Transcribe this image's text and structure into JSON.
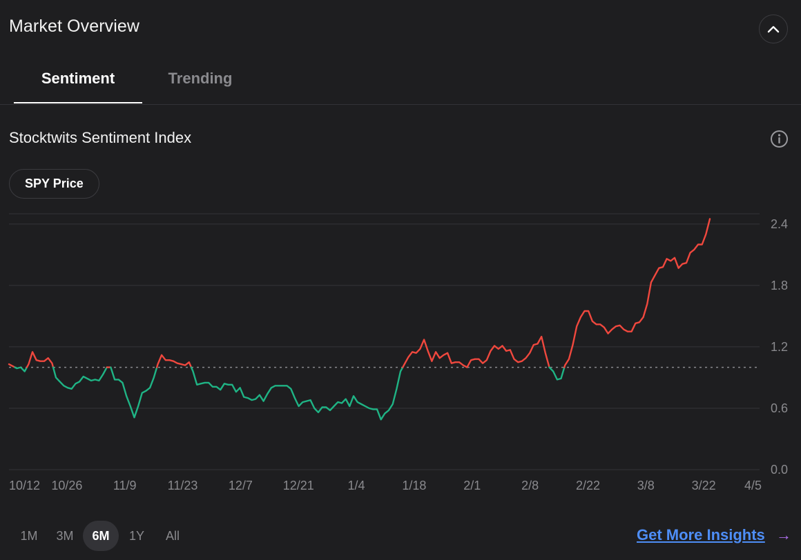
{
  "header": {
    "title": "Market Overview"
  },
  "tabs": [
    {
      "label": "Sentiment",
      "active": true
    },
    {
      "label": "Trending",
      "active": false
    }
  ],
  "section": {
    "title": "Stocktwits Sentiment Index",
    "info_icon": "info-icon"
  },
  "filter_pill": {
    "label": "SPY Price"
  },
  "chart_data": {
    "type": "line",
    "title": "",
    "xlabel": "",
    "ylabel": "",
    "ylim": [
      0,
      2.5
    ],
    "y_ticks": [
      "0.0",
      "0.6",
      "1.2",
      "1.8",
      "2.4"
    ],
    "x_ticks": [
      "10/12",
      "10/26",
      "11/9",
      "11/23",
      "12/7",
      "12/21",
      "1/4",
      "1/18",
      "2/1",
      "2/8",
      "2/22",
      "3/8",
      "3/22",
      "4/5"
    ],
    "baseline": 1.0,
    "colors": {
      "above": "#f0483e",
      "below": "#1fb485",
      "baseline": "#8a8a8e",
      "grid": "#343438"
    },
    "series": [
      {
        "name": "",
        "values": [
          1.03,
          1.01,
          0.99,
          1.0,
          0.96,
          1.03,
          1.15,
          1.07,
          1.06,
          1.06,
          1.09,
          1.04,
          0.9,
          0.86,
          0.82,
          0.8,
          0.79,
          0.84,
          0.86,
          0.91,
          0.89,
          0.87,
          0.88,
          0.87,
          0.93,
          1.0,
          1.0,
          0.88,
          0.88,
          0.85,
          0.72,
          0.62,
          0.51,
          0.62,
          0.75,
          0.77,
          0.8,
          0.9,
          1.03,
          1.12,
          1.07,
          1.07,
          1.06,
          1.04,
          1.03,
          1.02,
          1.05,
          0.96,
          0.83,
          0.84,
          0.85,
          0.85,
          0.81,
          0.81,
          0.78,
          0.84,
          0.83,
          0.83,
          0.76,
          0.8,
          0.71,
          0.7,
          0.68,
          0.69,
          0.73,
          0.67,
          0.74,
          0.8,
          0.82,
          0.82,
          0.82,
          0.82,
          0.79,
          0.7,
          0.62,
          0.66,
          0.67,
          0.68,
          0.6,
          0.56,
          0.61,
          0.61,
          0.58,
          0.62,
          0.66,
          0.65,
          0.69,
          0.62,
          0.72,
          0.66,
          0.64,
          0.62,
          0.6,
          0.59,
          0.59,
          0.49,
          0.55,
          0.58,
          0.64,
          0.79,
          0.96,
          1.03,
          1.1,
          1.15,
          1.14,
          1.18,
          1.27,
          1.16,
          1.06,
          1.15,
          1.09,
          1.12,
          1.14,
          1.04,
          1.05,
          1.05,
          1.02,
          1.0,
          1.07,
          1.08,
          1.08,
          1.04,
          1.07,
          1.16,
          1.21,
          1.18,
          1.21,
          1.16,
          1.17,
          1.08,
          1.05,
          1.06,
          1.09,
          1.14,
          1.22,
          1.23,
          1.3,
          1.14,
          1.0,
          0.96,
          0.88,
          0.89,
          1.02,
          1.08,
          1.22,
          1.4,
          1.49,
          1.55,
          1.55,
          1.45,
          1.42,
          1.42,
          1.39,
          1.33,
          1.37,
          1.4,
          1.41,
          1.37,
          1.35,
          1.35,
          1.43,
          1.44,
          1.49,
          1.62,
          1.83,
          1.9,
          1.97,
          1.98,
          2.06,
          2.04,
          2.07,
          1.97,
          2.01,
          2.02,
          2.12,
          2.15,
          2.2,
          2.2,
          2.3,
          2.45
        ]
      }
    ]
  },
  "range_buttons": [
    {
      "label": "1M",
      "active": false
    },
    {
      "label": "3M",
      "active": false
    },
    {
      "label": "6M",
      "active": true
    },
    {
      "label": "1Y",
      "active": false
    },
    {
      "label": "All",
      "active": false
    }
  ],
  "insights_link": {
    "label": "Get More Insights",
    "arrow": "→"
  }
}
